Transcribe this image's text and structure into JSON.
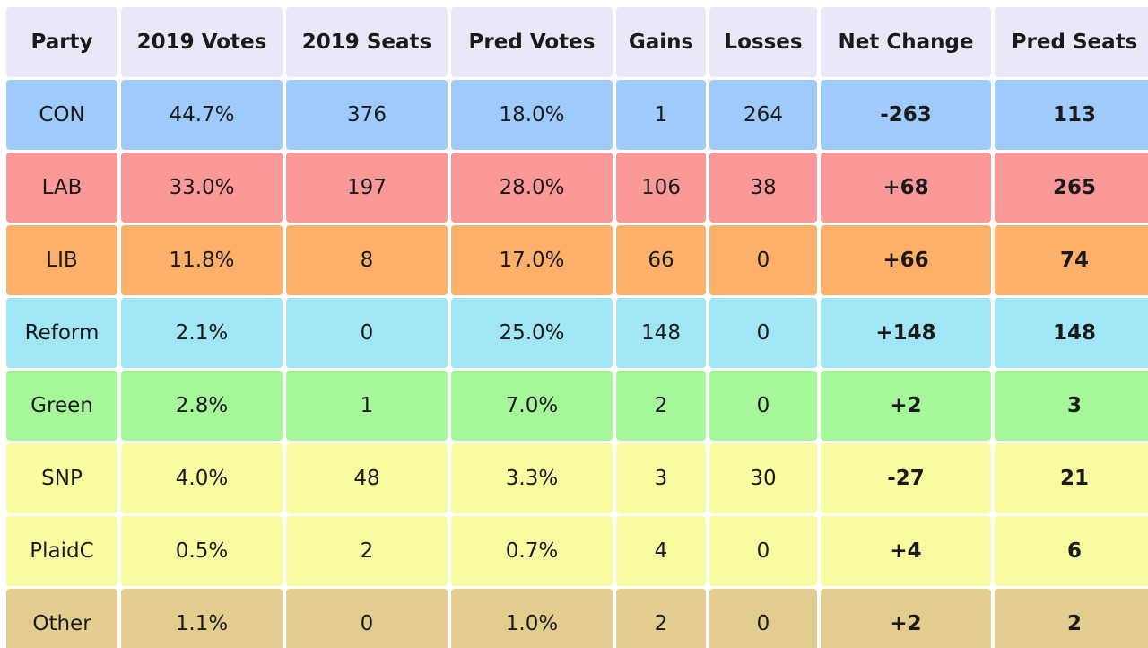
{
  "table": {
    "headers": [
      "Party",
      "2019 Votes",
      "2019 Seats",
      "Pred Votes",
      "Gains",
      "Losses",
      "Net Change",
      "Pred Seats"
    ],
    "rows": [
      {
        "party": "CON",
        "color": "#9ecbfb",
        "votes2019": "44.7%",
        "seats2019": "376",
        "pred_votes": "18.0%",
        "gains": "1",
        "losses": "264",
        "net_change": "-263",
        "pred_seats": "113"
      },
      {
        "party": "LAB",
        "color": "#fb9898",
        "votes2019": "33.0%",
        "seats2019": "197",
        "pred_votes": "28.0%",
        "gains": "106",
        "losses": "38",
        "net_change": "+68",
        "pred_seats": "265"
      },
      {
        "party": "LIB",
        "color": "#fcb06a",
        "votes2019": "11.8%",
        "seats2019": "8",
        "pred_votes": "17.0%",
        "gains": "66",
        "losses": "0",
        "net_change": "+66",
        "pred_seats": "74"
      },
      {
        "party": "Reform",
        "color": "#a0e6f4",
        "votes2019": "2.1%",
        "seats2019": "0",
        "pred_votes": "25.0%",
        "gains": "148",
        "losses": "0",
        "net_change": "+148",
        "pred_seats": "148"
      },
      {
        "party": "Green",
        "color": "#a6f79a",
        "votes2019": "2.8%",
        "seats2019": "1",
        "pred_votes": "7.0%",
        "gains": "2",
        "losses": "0",
        "net_change": "+2",
        "pred_seats": "3"
      },
      {
        "party": "SNP",
        "color": "#f9fba0",
        "votes2019": "4.0%",
        "seats2019": "48",
        "pred_votes": "3.3%",
        "gains": "3",
        "losses": "30",
        "net_change": "-27",
        "pred_seats": "21"
      },
      {
        "party": "PlaidC",
        "color": "#f9fba0",
        "votes2019": "0.5%",
        "seats2019": "2",
        "pred_votes": "0.7%",
        "gains": "4",
        "losses": "0",
        "net_change": "+4",
        "pred_seats": "6"
      },
      {
        "party": "Other",
        "color": "#e3cd8e",
        "votes2019": "1.1%",
        "seats2019": "0",
        "pred_votes": "1.0%",
        "gains": "2",
        "losses": "0",
        "net_change": "+2",
        "pred_seats": "2"
      }
    ]
  }
}
